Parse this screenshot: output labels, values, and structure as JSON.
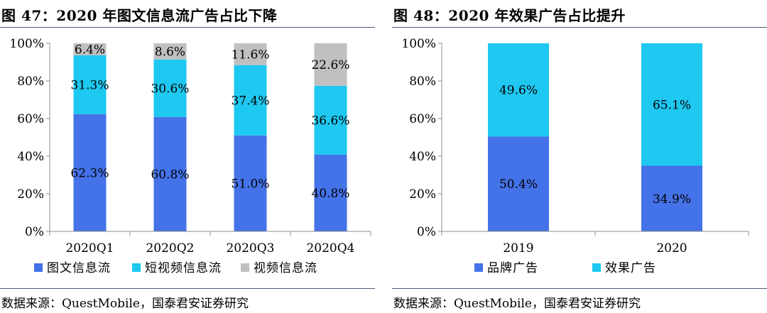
{
  "left": {
    "title": "图 47：2020 年图文信息流广告占比下降",
    "source": "数据来源：QuestMobile，国泰君安证券研究",
    "chart_data": {
      "type": "bar",
      "stacked": true,
      "percent": true,
      "categories": [
        "2020Q1",
        "2020Q2",
        "2020Q3",
        "2020Q4"
      ],
      "series": [
        {
          "name": "图文信息流",
          "color": "#4472e8",
          "values": [
            62.3,
            60.8,
            51.0,
            40.8
          ],
          "labels": [
            "62.3%",
            "60.8%",
            "51.0%",
            "40.8%"
          ]
        },
        {
          "name": "短视频信息流",
          "color": "#1ec8f0",
          "values": [
            31.3,
            30.6,
            37.4,
            36.6
          ],
          "labels": [
            "31.3%",
            "30.6%",
            "37.4%",
            "36.6%"
          ]
        },
        {
          "name": "视频信息流",
          "color": "#c0c0c0",
          "values": [
            6.4,
            8.6,
            11.6,
            22.6
          ],
          "labels": [
            "6.4%",
            "8.6%",
            "11.6%",
            "22.6%"
          ]
        }
      ],
      "ylim": [
        0,
        100
      ],
      "yticks": [
        "0%",
        "20%",
        "40%",
        "60%",
        "80%",
        "100%"
      ],
      "grid": false,
      "legend": "bottom"
    }
  },
  "right": {
    "title": "图 48：2020 年效果广告占比提升",
    "source": "数据来源：QuestMobile，国泰君安证券研究",
    "chart_data": {
      "type": "bar",
      "stacked": true,
      "percent": true,
      "categories": [
        "2019",
        "2020"
      ],
      "series": [
        {
          "name": "品牌广告",
          "color": "#4472e8",
          "values": [
            50.4,
            34.9
          ],
          "labels": [
            "50.4%",
            "34.9%"
          ]
        },
        {
          "name": "效果广告",
          "color": "#1ec8f0",
          "values": [
            49.6,
            65.1
          ],
          "labels": [
            "49.6%",
            "65.1%"
          ]
        }
      ],
      "ylim": [
        0,
        100
      ],
      "yticks": [
        "0%",
        "20%",
        "40%",
        "60%",
        "80%",
        "100%"
      ],
      "grid": false,
      "legend": "bottom"
    }
  }
}
